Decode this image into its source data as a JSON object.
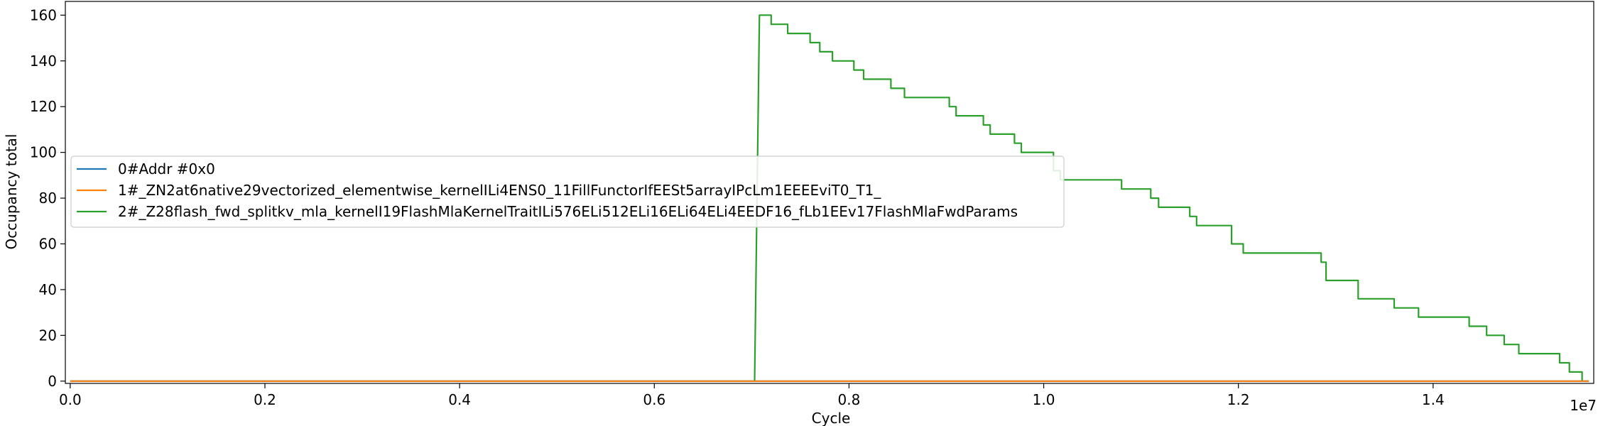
{
  "chart_data": {
    "type": "line",
    "xlabel": "Cycle",
    "ylabel": "Occupancy total",
    "x_offset_label": "1e7",
    "xlim": [
      -0.005,
      1.565
    ],
    "ylim": [
      -1,
      166
    ],
    "x_ticks": [
      0.0,
      0.2,
      0.4,
      0.6,
      0.8,
      1.0,
      1.2,
      1.4
    ],
    "x_tick_labels": [
      "0.0",
      "0.2",
      "0.4",
      "0.6",
      "0.8",
      "1.0",
      "1.2",
      "1.4"
    ],
    "y_ticks": [
      0,
      20,
      40,
      60,
      80,
      100,
      120,
      140,
      160
    ],
    "y_tick_labels": [
      "0",
      "20",
      "40",
      "60",
      "80",
      "100",
      "120",
      "140",
      "160"
    ],
    "grid": false,
    "legend": "center-left",
    "series": [
      {
        "name": "0#Addr #0x0",
        "color": "#1f77b4",
        "x": [
          0.0,
          1.56
        ],
        "y": [
          0,
          0
        ]
      },
      {
        "name": "1#_ZN2at6native29vectorized_elementwise_kernelILi4ENS0_11FillFunctorIfEESt5arrayIPcLm1EEEEviT0_T1_",
        "color": "#ff7f0e",
        "x": [
          0.0,
          1.56
        ],
        "y": [
          0,
          0
        ]
      },
      {
        "name": "2#_Z28flash_fwd_splitkv_mla_kernelI19FlashMlaKernelTraitILi576ELi512ELi16ELi64ELi4EEDF16_fLb1EEv17FlashMlaFwdParams",
        "color": "#2ca02c",
        "x": [
          0.0,
          0.703,
          0.708,
          0.72,
          0.72,
          0.737,
          0.737,
          0.76,
          0.76,
          0.77,
          0.77,
          0.783,
          0.783,
          0.805,
          0.805,
          0.815,
          0.815,
          0.843,
          0.843,
          0.857,
          0.857,
          0.903,
          0.903,
          0.91,
          0.91,
          0.938,
          0.938,
          0.945,
          0.945,
          0.97,
          0.97,
          0.977,
          0.977,
          1.01,
          1.01,
          1.017,
          1.017,
          1.08,
          1.08,
          1.11,
          1.11,
          1.118,
          1.118,
          1.15,
          1.15,
          1.157,
          1.157,
          1.193,
          1.193,
          1.205,
          1.205,
          1.285,
          1.285,
          1.29,
          1.29,
          1.323,
          1.323,
          1.36,
          1.36,
          1.385,
          1.385,
          1.437,
          1.437,
          1.455,
          1.455,
          1.473,
          1.473,
          1.488,
          1.488,
          1.53,
          1.53,
          1.54,
          1.54,
          1.553,
          1.553,
          1.56
        ],
        "y": [
          0,
          0,
          160,
          160,
          156,
          156,
          152,
          152,
          148,
          148,
          144,
          144,
          140,
          140,
          136,
          136,
          132,
          132,
          128,
          128,
          124,
          124,
          120,
          120,
          116,
          116,
          112,
          112,
          108,
          108,
          104,
          104,
          100,
          100,
          92,
          92,
          88,
          88,
          84,
          84,
          80,
          80,
          76,
          76,
          72,
          72,
          68,
          68,
          60,
          60,
          56,
          56,
          52,
          52,
          44,
          44,
          36,
          36,
          32,
          32,
          28,
          28,
          24,
          24,
          20,
          20,
          16,
          16,
          12,
          12,
          8,
          8,
          4,
          4,
          0,
          0
        ]
      }
    ]
  }
}
